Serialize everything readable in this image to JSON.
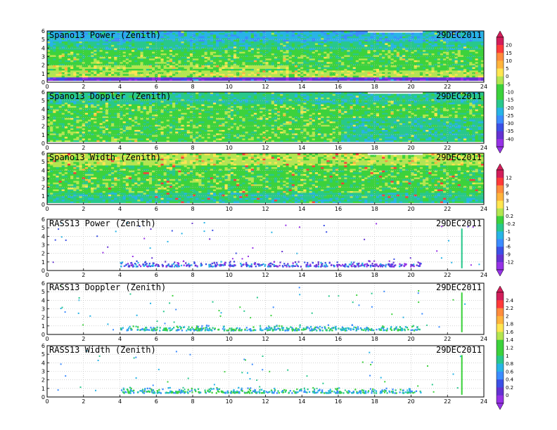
{
  "chart_data": [
    {
      "type": "heatmap",
      "title": "Spano13 Power (Zenith)",
      "date": "29DEC2011",
      "x_ticks": [
        "0",
        "2",
        "4",
        "6",
        "8",
        "10",
        "12",
        "14",
        "16",
        "18",
        "20",
        "22",
        "24"
      ],
      "y_ticks": [
        "0",
        "1",
        "2",
        "3",
        "4",
        "5",
        "6"
      ],
      "xlim": [
        0,
        24
      ],
      "ylim": [
        0,
        6
      ],
      "coverage": "full",
      "grid": true
    },
    {
      "type": "heatmap",
      "title": "Spano13 Doppler (Zenith)",
      "date": "29DEC2011",
      "x_ticks": [
        "0",
        "2",
        "4",
        "6",
        "8",
        "10",
        "12",
        "14",
        "16",
        "18",
        "20",
        "22",
        "24"
      ],
      "y_ticks": [
        "0",
        "1",
        "2",
        "3",
        "4",
        "5",
        "6"
      ],
      "xlim": [
        0,
        24
      ],
      "ylim": [
        0,
        6
      ],
      "coverage": "full",
      "grid": true
    },
    {
      "type": "heatmap",
      "title": "Spano13 Width (Zenith)",
      "date": "29DEC2011",
      "x_ticks": [
        "0",
        "2",
        "4",
        "6",
        "8",
        "10",
        "12",
        "14",
        "16",
        "18",
        "20",
        "22",
        "24"
      ],
      "y_ticks": [
        "0",
        "1",
        "2",
        "3",
        "4",
        "5",
        "6"
      ],
      "xlim": [
        0,
        24
      ],
      "ylim": [
        0,
        6
      ],
      "coverage": "full",
      "grid": true
    },
    {
      "type": "scatter",
      "title": "RASS13 Power (Zenith)",
      "date": "29DEC2011",
      "x_ticks": [
        "0",
        "2",
        "4",
        "6",
        "8",
        "10",
        "12",
        "14",
        "16",
        "18",
        "20",
        "22",
        "24"
      ],
      "y_ticks": [
        "0",
        "1",
        "2",
        "3",
        "4",
        "5",
        "6"
      ],
      "xlim": [
        0,
        24
      ],
      "ylim": [
        0,
        6
      ],
      "coverage": "sparse",
      "grid": true
    },
    {
      "type": "scatter",
      "title": "RASS13 Doppler (Zenith)",
      "date": "29DEC2011",
      "x_ticks": [
        "0",
        "2",
        "4",
        "6",
        "8",
        "10",
        "12",
        "14",
        "16",
        "18",
        "20",
        "22",
        "24"
      ],
      "y_ticks": [
        "0",
        "1",
        "2",
        "3",
        "4",
        "5",
        "6"
      ],
      "xlim": [
        0,
        24
      ],
      "ylim": [
        0,
        6
      ],
      "coverage": "sparse",
      "grid": true
    },
    {
      "type": "scatter",
      "title": "RASS13 Width (Zenith)",
      "date": "29DEC2011",
      "x_ticks": [
        "0",
        "2",
        "4",
        "6",
        "8",
        "10",
        "12",
        "14",
        "16",
        "18",
        "20",
        "22",
        "24"
      ],
      "y_ticks": [
        "0",
        "1",
        "2",
        "3",
        "4",
        "5",
        "6"
      ],
      "xlim": [
        0,
        24
      ],
      "ylim": [
        0,
        6
      ],
      "coverage": "sparse",
      "grid": true
    }
  ],
  "colorbars": [
    {
      "labels": [
        "20",
        "15",
        "10",
        "5",
        "0",
        "-5",
        "-10",
        "-15",
        "-20",
        "-25",
        "-30",
        "-35",
        "-40"
      ]
    },
    {
      "labels": [
        "12",
        "9",
        "6",
        "3",
        "1",
        "0.2",
        "-0.2",
        "-1",
        "-3",
        "-6",
        "-9",
        "-12"
      ]
    },
    {
      "labels": [
        "2.4",
        "2.2",
        "2",
        "1.8",
        "1.6",
        "1.4",
        "1.2",
        "1",
        "0.8",
        "0.6",
        "0.4",
        "0.2",
        "0"
      ]
    }
  ],
  "palette": [
    "#d21e5a",
    "#ff3a3a",
    "#ff8c3c",
    "#ffb43c",
    "#ffe650",
    "#b4e650",
    "#3cd23c",
    "#28c88c",
    "#28b4e6",
    "#3c8cff",
    "#3c50e6",
    "#6432d2",
    "#9632e6"
  ]
}
